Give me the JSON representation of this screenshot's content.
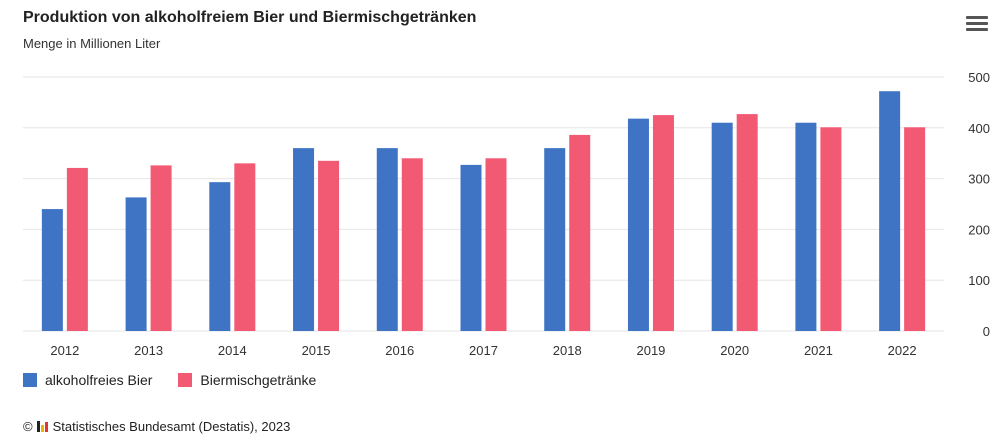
{
  "header": {
    "title": "Produktion von alkoholfreiem Bier und Biermischgetränken",
    "subtitle": "Menge in Millionen Liter"
  },
  "icons": {
    "menu": "hamburger-menu-icon",
    "logo": "destatis-logo-icon"
  },
  "colors": {
    "series1": "#3f74c4",
    "series2": "#f25a74",
    "grid": "#e6e6e6",
    "axis_text": "#333333"
  },
  "source": {
    "copyright": "©",
    "text": "Statistisches Bundesamt (Destatis), 2023"
  },
  "chart_data": {
    "type": "bar",
    "categories": [
      "2012",
      "2013",
      "2014",
      "2015",
      "2016",
      "2017",
      "2018",
      "2019",
      "2020",
      "2021",
      "2022"
    ],
    "series": [
      {
        "name": "alkoholfreies Bier",
        "values": [
          240,
          263,
          293,
          360,
          360,
          327,
          360,
          418,
          410,
          410,
          472
        ]
      },
      {
        "name": "Biermischgetränke",
        "values": [
          321,
          326,
          330,
          335,
          340,
          340,
          386,
          425,
          427,
          401,
          401
        ]
      }
    ],
    "yticks": [
      "0",
      "100",
      "200",
      "300",
      "400",
      "500"
    ],
    "ylim": [
      0,
      500
    ],
    "yaxis_position": "right",
    "grid": true,
    "legend_position": "bottom-left"
  }
}
